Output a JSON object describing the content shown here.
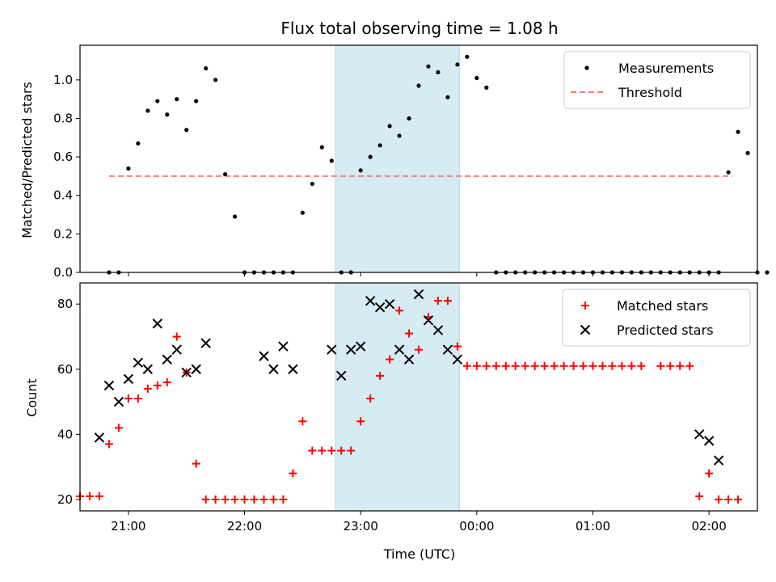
{
  "chart_data": [
    {
      "type": "scatter",
      "title": "Flux total observing time = 1.08 h",
      "xlabel": "",
      "ylabel": "Matched/Predicted stars",
      "ylim": [
        0,
        1.18
      ],
      "xlim": [
        "20:35",
        "02:25"
      ],
      "yticks": [
        "0.0",
        "0.2",
        "0.4",
        "0.6",
        "0.8",
        "1.0"
      ],
      "shaded_span": [
        "22:47",
        "23:51"
      ],
      "grid": false,
      "legend_position": "top-right",
      "legend": [
        "Measurements",
        "Threshold"
      ],
      "threshold": {
        "name": "Threshold",
        "value": 0.5,
        "x_range": [
          "20:50",
          "02:12"
        ],
        "color": "#f08080"
      },
      "series": [
        {
          "name": "Measurements",
          "color": "#000000",
          "points": [
            [
              "20:50",
              0.0
            ],
            [
              "20:55",
              0.0
            ],
            [
              "21:00",
              0.54
            ],
            [
              "21:05",
              0.67
            ],
            [
              "21:10",
              0.84
            ],
            [
              "21:15",
              0.89
            ],
            [
              "21:20",
              0.82
            ],
            [
              "21:25",
              0.9
            ],
            [
              "21:30",
              0.74
            ],
            [
              "21:35",
              0.89
            ],
            [
              "21:40",
              1.06
            ],
            [
              "21:45",
              1.0
            ],
            [
              "21:50",
              0.51
            ],
            [
              "21:55",
              0.29
            ],
            [
              "22:00",
              0.0
            ],
            [
              "22:05",
              0.0
            ],
            [
              "22:10",
              0.0
            ],
            [
              "22:15",
              0.0
            ],
            [
              "22:20",
              0.0
            ],
            [
              "22:25",
              0.0
            ],
            [
              "22:30",
              0.31
            ],
            [
              "22:35",
              0.46
            ],
            [
              "22:40",
              0.65
            ],
            [
              "22:45",
              0.58
            ],
            [
              "22:50",
              0.0
            ],
            [
              "22:55",
              0.0
            ],
            [
              "23:00",
              0.53
            ],
            [
              "23:05",
              0.6
            ],
            [
              "23:10",
              0.66
            ],
            [
              "23:15",
              0.76
            ],
            [
              "23:20",
              0.71
            ],
            [
              "23:25",
              0.8
            ],
            [
              "23:30",
              0.97
            ],
            [
              "23:35",
              1.07
            ],
            [
              "23:40",
              1.04
            ],
            [
              "23:45",
              0.91
            ],
            [
              "23:50",
              1.08
            ],
            [
              "23:55",
              1.12
            ],
            [
              "00:00",
              1.01
            ],
            [
              "00:05",
              0.96
            ],
            [
              "00:10",
              0.0
            ],
            [
              "00:15",
              0.0
            ],
            [
              "00:20",
              0.0
            ],
            [
              "00:25",
              0.0
            ],
            [
              "00:30",
              0.0
            ],
            [
              "00:35",
              0.0
            ],
            [
              "00:40",
              0.0
            ],
            [
              "00:45",
              0.0
            ],
            [
              "00:50",
              0.0
            ],
            [
              "00:55",
              0.0
            ],
            [
              "01:00",
              0.0
            ],
            [
              "01:05",
              0.0
            ],
            [
              "01:10",
              0.0
            ],
            [
              "01:15",
              0.0
            ],
            [
              "01:20",
              0.0
            ],
            [
              "01:25",
              0.0
            ],
            [
              "01:30",
              0.0
            ],
            [
              "01:35",
              0.0
            ],
            [
              "01:40",
              0.0
            ],
            [
              "01:45",
              0.0
            ],
            [
              "01:50",
              0.0
            ],
            [
              "01:55",
              0.0
            ],
            [
              "02:00",
              0.0
            ],
            [
              "02:05",
              0.0
            ],
            [
              "02:10",
              0.52
            ],
            [
              "02:15",
              0.73
            ],
            [
              "02:20",
              0.62
            ],
            [
              "02:25",
              0.0
            ],
            [
              "02:30",
              0.0
            ]
          ]
        }
      ]
    },
    {
      "type": "scatter",
      "title": "",
      "xlabel": "Time (UTC)",
      "ylabel": "Count",
      "ylim": [
        16.5,
        86.5
      ],
      "xlim": [
        "20:35",
        "02:25"
      ],
      "xticks": [
        "21:00",
        "22:00",
        "23:00",
        "00:00",
        "01:00",
        "02:00"
      ],
      "yticks": [
        "20",
        "40",
        "60",
        "80"
      ],
      "shaded_span": [
        "22:47",
        "23:51"
      ],
      "grid": false,
      "legend_position": "top-right",
      "series": [
        {
          "name": "Matched stars",
          "marker": "+",
          "color": "#ff0000",
          "points": [
            [
              "20:35",
              21
            ],
            [
              "20:40",
              21
            ],
            [
              "20:45",
              21
            ],
            [
              "20:50",
              37
            ],
            [
              "20:55",
              42
            ],
            [
              "21:00",
              51
            ],
            [
              "21:05",
              51
            ],
            [
              "21:10",
              54
            ],
            [
              "21:15",
              55
            ],
            [
              "21:20",
              56
            ],
            [
              "21:25",
              70
            ],
            [
              "21:30",
              59
            ],
            [
              "21:35",
              31
            ],
            [
              "21:40",
              20
            ],
            [
              "21:45",
              20
            ],
            [
              "21:50",
              20
            ],
            [
              "21:55",
              20
            ],
            [
              "22:00",
              20
            ],
            [
              "22:05",
              20
            ],
            [
              "22:10",
              20
            ],
            [
              "22:15",
              20
            ],
            [
              "22:20",
              20
            ],
            [
              "22:25",
              28
            ],
            [
              "22:30",
              44
            ],
            [
              "22:35",
              35
            ],
            [
              "22:40",
              35
            ],
            [
              "22:45",
              35
            ],
            [
              "22:50",
              35
            ],
            [
              "22:55",
              35
            ],
            [
              "23:00",
              44
            ],
            [
              "23:05",
              51
            ],
            [
              "23:10",
              58
            ],
            [
              "23:15",
              63
            ],
            [
              "23:20",
              78
            ],
            [
              "23:25",
              71
            ],
            [
              "23:30",
              66
            ],
            [
              "23:35",
              76
            ],
            [
              "23:40",
              81
            ],
            [
              "23:45",
              81
            ],
            [
              "23:50",
              67
            ],
            [
              "23:55",
              61
            ],
            [
              "00:00",
              61
            ],
            [
              "00:05",
              61
            ],
            [
              "00:10",
              61
            ],
            [
              "00:15",
              61
            ],
            [
              "00:20",
              61
            ],
            [
              "00:25",
              61
            ],
            [
              "00:30",
              61
            ],
            [
              "00:35",
              61
            ],
            [
              "00:40",
              61
            ],
            [
              "00:45",
              61
            ],
            [
              "00:50",
              61
            ],
            [
              "00:55",
              61
            ],
            [
              "01:00",
              61
            ],
            [
              "01:05",
              61
            ],
            [
              "01:10",
              61
            ],
            [
              "01:15",
              61
            ],
            [
              "01:20",
              61
            ],
            [
              "01:25",
              61
            ],
            [
              "01:35",
              61
            ],
            [
              "01:40",
              61
            ],
            [
              "01:45",
              61
            ],
            [
              "01:50",
              61
            ],
            [
              "01:55",
              21
            ],
            [
              "02:00",
              28
            ],
            [
              "02:05",
              20
            ],
            [
              "02:10",
              20
            ],
            [
              "02:15",
              20
            ]
          ]
        },
        {
          "name": "Predicted stars",
          "marker": "x",
          "color": "#000000",
          "points": [
            [
              "20:45",
              39
            ],
            [
              "20:50",
              55
            ],
            [
              "20:55",
              50
            ],
            [
              "21:00",
              57
            ],
            [
              "21:05",
              62
            ],
            [
              "21:10",
              60
            ],
            [
              "21:15",
              74
            ],
            [
              "21:20",
              63
            ],
            [
              "21:25",
              66
            ],
            [
              "21:30",
              59
            ],
            [
              "21:35",
              60
            ],
            [
              "21:40",
              68
            ],
            [
              "22:10",
              64
            ],
            [
              "22:15",
              60
            ],
            [
              "22:20",
              67
            ],
            [
              "22:25",
              60
            ],
            [
              "22:45",
              66
            ],
            [
              "22:50",
              58
            ],
            [
              "22:55",
              66
            ],
            [
              "23:00",
              67
            ],
            [
              "23:05",
              81
            ],
            [
              "23:10",
              79
            ],
            [
              "23:15",
              80
            ],
            [
              "23:20",
              66
            ],
            [
              "23:25",
              63
            ],
            [
              "23:30",
              83
            ],
            [
              "23:35",
              75
            ],
            [
              "23:40",
              72
            ],
            [
              "23:45",
              66
            ],
            [
              "23:50",
              63
            ],
            [
              "01:55",
              40
            ],
            [
              "02:00",
              38
            ],
            [
              "02:05",
              32
            ]
          ]
        }
      ]
    }
  ]
}
